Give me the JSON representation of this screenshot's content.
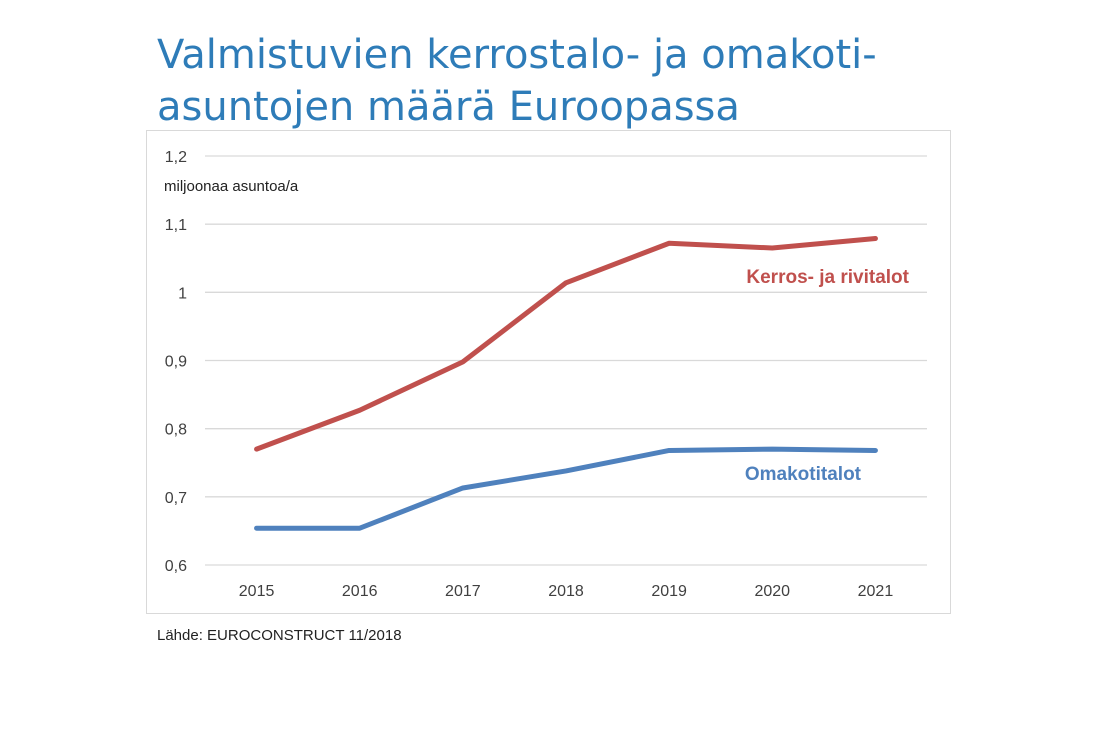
{
  "title_lines": [
    "Valmistuvien kerrostalo- ja omakoti-",
    "asuntojen määrä Euroopassa"
  ],
  "source": "Lähde: EUROCONSTRUCT 11/2018",
  "chart_data": {
    "type": "line",
    "ylabel": "miljoonaa asuntoa/a",
    "ylim": [
      0.6,
      1.2
    ],
    "yticks": [
      "0,6",
      "0,7",
      "0,8",
      "0,9",
      "1",
      "1,1",
      "1,2"
    ],
    "ytick_values": [
      0.6,
      0.7,
      0.8,
      0.9,
      1.0,
      1.1,
      1.2
    ],
    "categories": [
      "2015",
      "2016",
      "2017",
      "2018",
      "2019",
      "2020",
      "2021"
    ],
    "grid": true,
    "series": [
      {
        "name": "Kerros- ja rivitalot",
        "color": "#c0504d",
        "values": [
          0.77,
          0.827,
          0.898,
          1.014,
          1.072,
          1.065,
          1.079
        ]
      },
      {
        "name": "Omakotitalot",
        "color": "#4f81bd",
        "values": [
          0.654,
          0.654,
          0.713,
          0.738,
          0.768,
          0.77,
          0.768
        ]
      }
    ]
  }
}
